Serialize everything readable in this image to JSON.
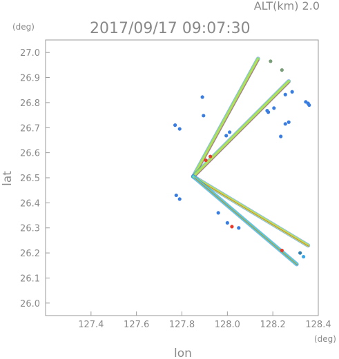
{
  "chart_data": {
    "type": "scatter",
    "subtitle": "ALT(km)  2.0",
    "title": "2017/09/17 09:07:30",
    "xlabel": "lon",
    "ylabel": "lat",
    "x_unit": "(deg)",
    "y_unit": "(deg)",
    "xlim": [
      127.2,
      128.4
    ],
    "ylim": [
      25.95,
      27.05
    ],
    "x_ticks": [
      127.4,
      127.6,
      127.8,
      128.0,
      128.2,
      128.4
    ],
    "x_tick_labels": [
      "127.4",
      "127.6",
      "127.8",
      "128.0",
      "128.2",
      "128.4"
    ],
    "y_ticks": [
      26.0,
      26.1,
      26.2,
      26.3,
      26.4,
      26.5,
      26.6,
      26.7,
      26.8,
      26.9,
      27.0
    ],
    "y_tick_labels": [
      "26.0",
      "26.1",
      "26.2",
      "26.3",
      "26.4",
      "26.5",
      "26.6",
      "26.7",
      "26.8",
      "26.9",
      "27.0"
    ],
    "grid": false,
    "origin": [
      127.85,
      26.505
    ],
    "series": [
      {
        "from": [
          127.85,
          26.505
        ],
        "to": [
          128.135,
          26.975
        ],
        "color": "#8ee56a"
      },
      {
        "from": [
          127.85,
          26.505
        ],
        "to": [
          128.27,
          26.885
        ],
        "color": "#8ee56a"
      },
      {
        "from": [
          127.85,
          26.505
        ],
        "to": [
          128.355,
          26.23
        ],
        "color": "#a9e860"
      },
      {
        "from": [
          127.85,
          26.505
        ],
        "to": [
          128.305,
          26.155
        ],
        "color": "#3fd6d0"
      }
    ],
    "points": [
      {
        "x": 128.285,
        "y": 26.843,
        "color": "#3a7de0"
      },
      {
        "x": 128.255,
        "y": 26.832,
        "color": "#3a7de0"
      },
      {
        "x": 128.355,
        "y": 26.797,
        "color": "#3a7de0"
      },
      {
        "x": 128.36,
        "y": 26.79,
        "color": "#3a7de0"
      },
      {
        "x": 128.345,
        "y": 26.803,
        "color": "#3a7de0"
      },
      {
        "x": 128.27,
        "y": 26.722,
        "color": "#3a7de0"
      },
      {
        "x": 128.255,
        "y": 26.715,
        "color": "#3a7de0"
      },
      {
        "x": 128.175,
        "y": 26.768,
        "color": "#3a7de0"
      },
      {
        "x": 128.18,
        "y": 26.762,
        "color": "#3a7de0"
      },
      {
        "x": 128.205,
        "y": 26.778,
        "color": "#3a7de0"
      },
      {
        "x": 128.235,
        "y": 26.665,
        "color": "#3a7de0"
      },
      {
        "x": 128.01,
        "y": 26.682,
        "color": "#3a7de0"
      },
      {
        "x": 127.995,
        "y": 26.668,
        "color": "#3a7de0"
      },
      {
        "x": 127.895,
        "y": 26.748,
        "color": "#3a7de0"
      },
      {
        "x": 127.89,
        "y": 26.822,
        "color": "#3a7de0"
      },
      {
        "x": 127.79,
        "y": 26.695,
        "color": "#3a7de0"
      },
      {
        "x": 127.77,
        "y": 26.71,
        "color": "#3a7de0"
      },
      {
        "x": 127.775,
        "y": 26.43,
        "color": "#3a7de0"
      },
      {
        "x": 127.79,
        "y": 26.415,
        "color": "#3a7de0"
      },
      {
        "x": 127.96,
        "y": 26.36,
        "color": "#3a7de0"
      },
      {
        "x": 128.0,
        "y": 26.32,
        "color": "#3a7de0"
      },
      {
        "x": 128.05,
        "y": 26.3,
        "color": "#3a7de0"
      },
      {
        "x": 127.925,
        "y": 26.585,
        "color": "#e53a2a"
      },
      {
        "x": 127.905,
        "y": 26.57,
        "color": "#e53a2a"
      },
      {
        "x": 128.02,
        "y": 26.305,
        "color": "#e53a2a"
      },
      {
        "x": 128.24,
        "y": 26.21,
        "color": "#e53a2a"
      },
      {
        "x": 128.335,
        "y": 26.185,
        "color": "#3aa8e8"
      },
      {
        "x": 128.32,
        "y": 26.2,
        "color": "#2f7fb0"
      },
      {
        "x": 128.19,
        "y": 26.965,
        "color": "#7a9f78"
      },
      {
        "x": 128.24,
        "y": 26.93,
        "color": "#7a9f78"
      }
    ]
  }
}
